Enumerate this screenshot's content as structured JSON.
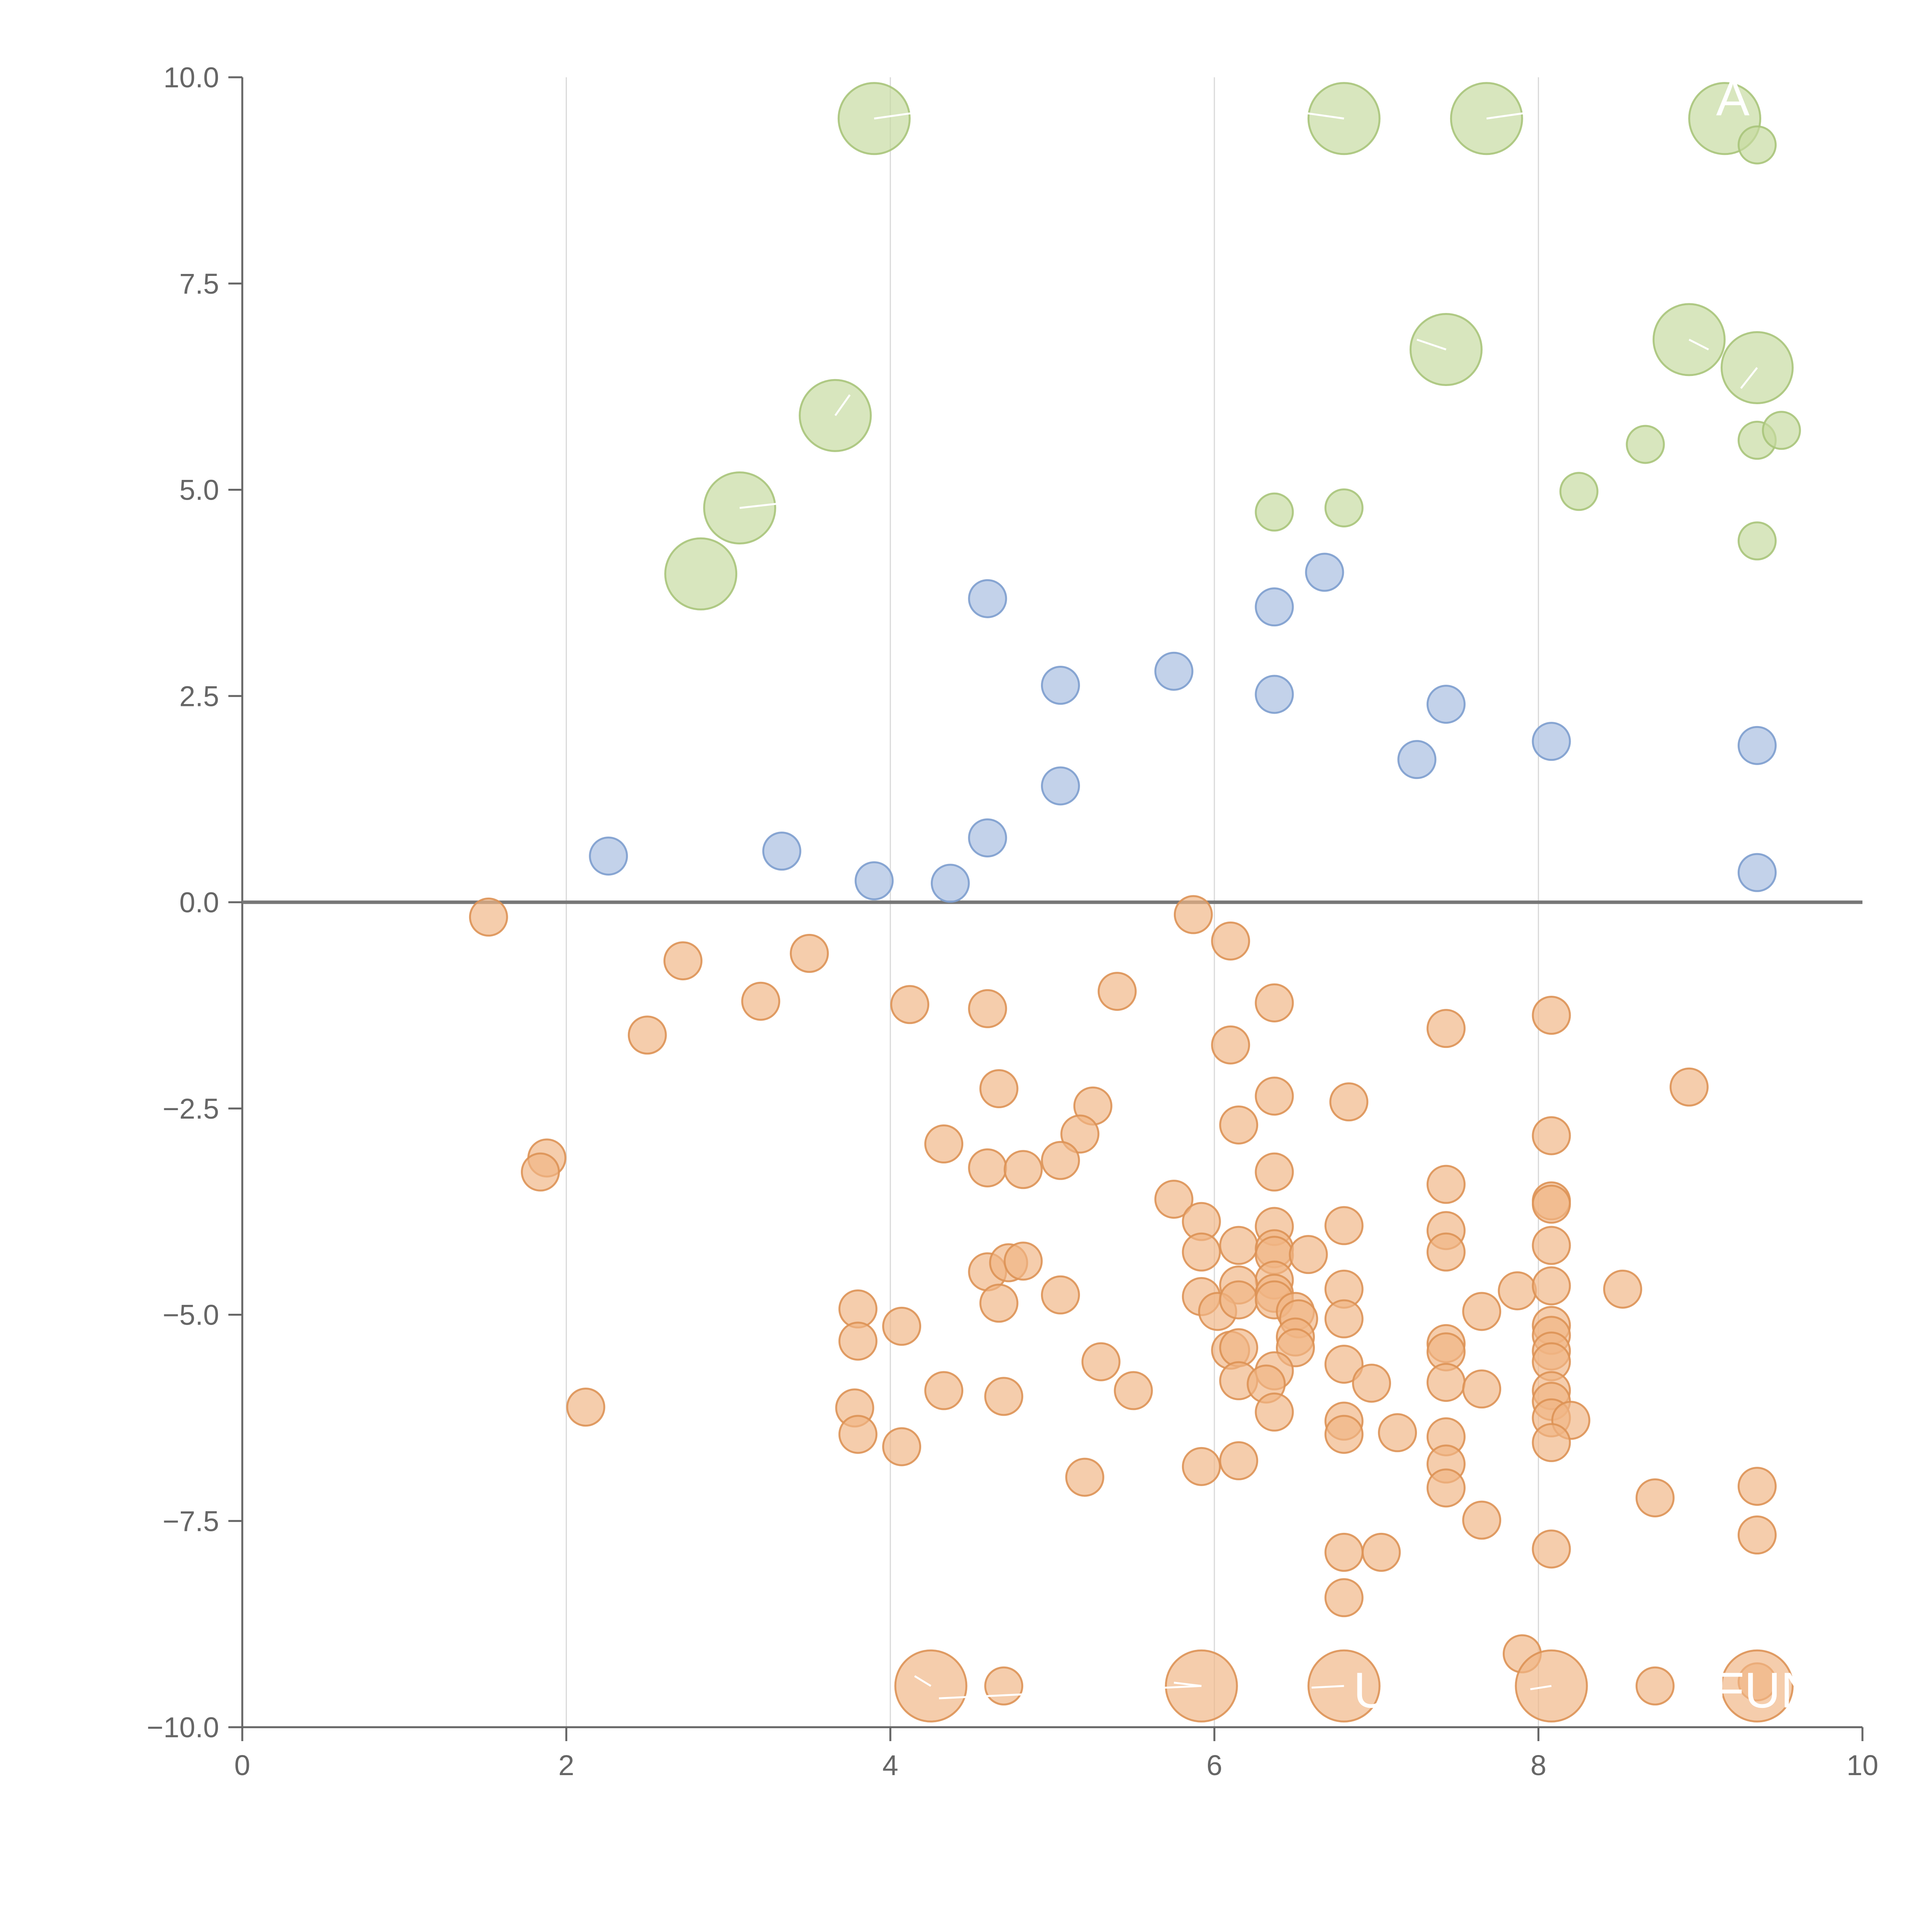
{
  "chart_data": {
    "type": "scatter",
    "title": "",
    "xlabel": "",
    "ylabel": "",
    "xlim": [
      0,
      10
    ],
    "ylim": [
      -10,
      10
    ],
    "x_ticks": [
      "0",
      "2",
      "4",
      "6",
      "8",
      "10"
    ],
    "y_ticks": [
      "−10.0",
      "−7.5",
      "−5.0",
      "−2.5",
      "0.0",
      "2.5",
      "5.0",
      "7.5",
      "10.0"
    ],
    "x_tick_values": [
      0,
      2,
      4,
      6,
      8,
      10
    ],
    "y_tick_values": [
      -10,
      -7.5,
      -5,
      -2.5,
      0,
      2.5,
      5,
      7.5,
      10
    ],
    "vertical_grid_at": [
      2,
      4,
      6,
      8
    ],
    "reference_line_y": 0,
    "legend": "none",
    "colors": {
      "green_fill": "#c5da9f",
      "green_stroke": "#a9c47a",
      "blue_fill": "#a6bde0",
      "blue_stroke": "#7d9dce",
      "orange_fill": "#f0b585",
      "orange_stroke": "#dd9255"
    },
    "series": [
      {
        "color": "green",
        "points": [
          {
            "x": 3.9,
            "y": 9.5,
            "size": 2
          },
          {
            "x": 6.8,
            "y": 9.5,
            "size": 2
          },
          {
            "x": 7.68,
            "y": 9.5,
            "size": 2
          },
          {
            "x": 9.15,
            "y": 9.5,
            "size": 2
          },
          {
            "x": 9.35,
            "y": 9.18,
            "size": 1
          },
          {
            "x": 7.43,
            "y": 6.7,
            "size": 2
          },
          {
            "x": 8.93,
            "y": 6.82,
            "size": 2
          },
          {
            "x": 9.35,
            "y": 6.48,
            "size": 2
          },
          {
            "x": 3.66,
            "y": 5.9,
            "size": 2
          },
          {
            "x": 3.07,
            "y": 4.78,
            "size": 2
          },
          {
            "x": 2.83,
            "y": 3.98,
            "size": 2
          },
          {
            "x": 8.66,
            "y": 5.55,
            "size": 1
          },
          {
            "x": 9.35,
            "y": 5.6,
            "size": 1
          },
          {
            "x": 9.5,
            "y": 5.72,
            "size": 1
          },
          {
            "x": 8.25,
            "y": 4.98,
            "size": 1
          },
          {
            "x": 6.37,
            "y": 4.73,
            "size": 1
          },
          {
            "x": 6.8,
            "y": 4.78,
            "size": 1
          },
          {
            "x": 9.35,
            "y": 4.38,
            "size": 1
          }
        ]
      },
      {
        "color": "blue",
        "points": [
          {
            "x": 4.6,
            "y": 3.68
          },
          {
            "x": 6.68,
            "y": 4.0
          },
          {
            "x": 6.37,
            "y": 3.58
          },
          {
            "x": 5.05,
            "y": 2.63
          },
          {
            "x": 5.75,
            "y": 2.8
          },
          {
            "x": 6.37,
            "y": 2.52
          },
          {
            "x": 7.43,
            "y": 2.4
          },
          {
            "x": 8.08,
            "y": 1.95
          },
          {
            "x": 7.25,
            "y": 1.73
          },
          {
            "x": 9.35,
            "y": 1.9
          },
          {
            "x": 5.05,
            "y": 1.41
          },
          {
            "x": 4.6,
            "y": 0.78
          },
          {
            "x": 2.26,
            "y": 0.56
          },
          {
            "x": 3.33,
            "y": 0.62
          },
          {
            "x": 3.9,
            "y": 0.26
          },
          {
            "x": 4.37,
            "y": 0.23
          },
          {
            "x": 9.35,
            "y": 0.36
          }
        ]
      },
      {
        "color": "orange",
        "points": [
          {
            "x": 1.52,
            "y": -0.18
          },
          {
            "x": 5.87,
            "y": -0.15
          },
          {
            "x": 6.1,
            "y": -0.47
          },
          {
            "x": 2.72,
            "y": -0.71
          },
          {
            "x": 3.5,
            "y": -0.62
          },
          {
            "x": 3.2,
            "y": -1.2
          },
          {
            "x": 2.5,
            "y": -1.61
          },
          {
            "x": 4.12,
            "y": -1.24
          },
          {
            "x": 4.6,
            "y": -1.29
          },
          {
            "x": 5.4,
            "y": -1.08
          },
          {
            "x": 6.37,
            "y": -1.22
          },
          {
            "x": 6.1,
            "y": -1.73
          },
          {
            "x": 7.43,
            "y": -1.53
          },
          {
            "x": 8.08,
            "y": -1.37
          },
          {
            "x": 4.67,
            "y": -2.26
          },
          {
            "x": 5.25,
            "y": -2.47
          },
          {
            "x": 6.37,
            "y": -2.35
          },
          {
            "x": 6.83,
            "y": -2.42
          },
          {
            "x": 8.93,
            "y": -2.24
          },
          {
            "x": 1.88,
            "y": -3.1
          },
          {
            "x": 1.84,
            "y": -3.27
          },
          {
            "x": 4.33,
            "y": -2.93
          },
          {
            "x": 5.17,
            "y": -2.81
          },
          {
            "x": 6.15,
            "y": -2.7
          },
          {
            "x": 8.08,
            "y": -2.83
          },
          {
            "x": 4.6,
            "y": -3.22
          },
          {
            "x": 4.82,
            "y": -3.24
          },
          {
            "x": 5.05,
            "y": -3.13
          },
          {
            "x": 6.37,
            "y": -3.27
          },
          {
            "x": 7.43,
            "y": -3.42
          },
          {
            "x": 5.75,
            "y": -3.6
          },
          {
            "x": 5.92,
            "y": -3.87
          },
          {
            "x": 8.08,
            "y": -3.62
          },
          {
            "x": 8.08,
            "y": -3.66
          },
          {
            "x": 6.37,
            "y": -3.93
          },
          {
            "x": 6.8,
            "y": -3.92
          },
          {
            "x": 7.43,
            "y": -3.98
          },
          {
            "x": 5.92,
            "y": -4.24
          },
          {
            "x": 6.15,
            "y": -4.16
          },
          {
            "x": 6.37,
            "y": -4.2
          },
          {
            "x": 6.37,
            "y": -4.28
          },
          {
            "x": 6.58,
            "y": -4.27
          },
          {
            "x": 7.43,
            "y": -4.24
          },
          {
            "x": 8.08,
            "y": -4.16
          },
          {
            "x": 4.6,
            "y": -4.48
          },
          {
            "x": 4.73,
            "y": -4.37
          },
          {
            "x": 4.82,
            "y": -4.35
          },
          {
            "x": 6.37,
            "y": -4.58
          },
          {
            "x": 6.15,
            "y": -4.64
          },
          {
            "x": 5.92,
            "y": -4.78
          },
          {
            "x": 6.02,
            "y": -4.96
          },
          {
            "x": 6.15,
            "y": -4.82
          },
          {
            "x": 6.37,
            "y": -4.74
          },
          {
            "x": 6.37,
            "y": -4.82
          },
          {
            "x": 6.8,
            "y": -4.69
          },
          {
            "x": 7.87,
            "y": -4.71
          },
          {
            "x": 8.08,
            "y": -4.65
          },
          {
            "x": 8.52,
            "y": -4.69
          },
          {
            "x": 3.8,
            "y": -4.93
          },
          {
            "x": 4.67,
            "y": -4.86
          },
          {
            "x": 5.05,
            "y": -4.76
          },
          {
            "x": 6.5,
            "y": -4.96
          },
          {
            "x": 6.52,
            "y": -5.05
          },
          {
            "x": 6.8,
            "y": -5.05
          },
          {
            "x": 7.65,
            "y": -4.96
          },
          {
            "x": 4.07,
            "y": -5.14
          },
          {
            "x": 8.08,
            "y": -5.13
          },
          {
            "x": 3.8,
            "y": -5.32
          },
          {
            "x": 6.5,
            "y": -5.27
          },
          {
            "x": 8.08,
            "y": -5.25
          },
          {
            "x": 7.43,
            "y": -5.35
          },
          {
            "x": 6.1,
            "y": -5.43
          },
          {
            "x": 6.15,
            "y": -5.4
          },
          {
            "x": 6.5,
            "y": -5.4
          },
          {
            "x": 7.43,
            "y": -5.45
          },
          {
            "x": 8.08,
            "y": -5.44
          },
          {
            "x": 5.3,
            "y": -5.57
          },
          {
            "x": 6.8,
            "y": -5.6
          },
          {
            "x": 8.08,
            "y": -5.57
          },
          {
            "x": 6.37,
            "y": -5.68
          },
          {
            "x": 6.15,
            "y": -5.8
          },
          {
            "x": 6.32,
            "y": -5.84
          },
          {
            "x": 6.97,
            "y": -5.83
          },
          {
            "x": 7.43,
            "y": -5.82
          },
          {
            "x": 4.33,
            "y": -5.92
          },
          {
            "x": 5.5,
            "y": -5.92
          },
          {
            "x": 4.7,
            "y": -5.99
          },
          {
            "x": 7.65,
            "y": -5.9
          },
          {
            "x": 8.08,
            "y": -5.92
          },
          {
            "x": 2.12,
            "y": -6.12
          },
          {
            "x": 3.78,
            "y": -6.13
          },
          {
            "x": 8.08,
            "y": -6.05
          },
          {
            "x": 6.37,
            "y": -6.18
          },
          {
            "x": 6.8,
            "y": -6.29
          },
          {
            "x": 8.08,
            "y": -6.25
          },
          {
            "x": 8.2,
            "y": -6.28
          },
          {
            "x": 3.8,
            "y": -6.45
          },
          {
            "x": 6.8,
            "y": -6.45
          },
          {
            "x": 7.13,
            "y": -6.43
          },
          {
            "x": 7.43,
            "y": -6.48
          },
          {
            "x": 4.07,
            "y": -6.6
          },
          {
            "x": 8.08,
            "y": -6.55
          },
          {
            "x": 5.92,
            "y": -6.84
          },
          {
            "x": 6.15,
            "y": -6.77
          },
          {
            "x": 7.43,
            "y": -6.81
          },
          {
            "x": 5.2,
            "y": -6.97
          },
          {
            "x": 7.43,
            "y": -7.1
          },
          {
            "x": 9.35,
            "y": -7.08
          },
          {
            "x": 8.72,
            "y": -7.22
          },
          {
            "x": 7.65,
            "y": -7.49
          },
          {
            "x": 9.35,
            "y": -7.67
          },
          {
            "x": 6.8,
            "y": -7.88
          },
          {
            "x": 7.03,
            "y": -7.88
          },
          {
            "x": 8.08,
            "y": -7.84
          },
          {
            "x": 6.8,
            "y": -8.43
          },
          {
            "x": 7.9,
            "y": -9.11
          },
          {
            "x": 4.7,
            "y": -9.5
          },
          {
            "x": 8.72,
            "y": -9.5
          },
          {
            "x": 9.35,
            "y": -9.45
          },
          {
            "x": 4.25,
            "y": -9.5,
            "size": 2
          },
          {
            "x": 5.92,
            "y": -9.5,
            "size": 2
          },
          {
            "x": 6.8,
            "y": -9.5,
            "size": 2
          },
          {
            "x": 8.08,
            "y": -9.5,
            "size": 2
          },
          {
            "x": 9.35,
            "y": -9.5,
            "size": 2
          }
        ]
      }
    ],
    "annotations": [
      {
        "text": "A",
        "x": 9.2,
        "y": 9.75
      },
      {
        "text": "U",
        "x": 6.97,
        "y": -9.55
      },
      {
        "text": "FUN",
        "x": 9.4,
        "y": -9.55
      }
    ],
    "leader_lines": [
      {
        "x1": 3.9,
        "y1": 9.5,
        "x2": 4.15,
        "y2": 9.57
      },
      {
        "x1": 6.8,
        "y1": 9.5,
        "x2": 6.55,
        "y2": 9.57
      },
      {
        "x1": 7.68,
        "y1": 9.5,
        "x2": 7.93,
        "y2": 9.57
      },
      {
        "x1": 7.43,
        "y1": 6.7,
        "x2": 7.25,
        "y2": 6.82
      },
      {
        "x1": 8.93,
        "y1": 6.82,
        "x2": 9.05,
        "y2": 6.7
      },
      {
        "x1": 9.35,
        "y1": 6.48,
        "x2": 9.25,
        "y2": 6.23
      },
      {
        "x1": 3.66,
        "y1": 5.9,
        "x2": 3.75,
        "y2": 6.15
      },
      {
        "x1": 3.07,
        "y1": 4.78,
        "x2": 3.3,
        "y2": 4.83
      },
      {
        "x1": 4.25,
        "y1": -9.5,
        "x2": 4.15,
        "y2": -9.38
      },
      {
        "x1": 5.92,
        "y1": -9.5,
        "x2": 4.3,
        "y2": -9.65
      },
      {
        "x1": 5.92,
        "y1": -9.5,
        "x2": 5.75,
        "y2": -9.46
      },
      {
        "x1": 6.8,
        "y1": -9.5,
        "x2": 6.6,
        "y2": -9.52
      },
      {
        "x1": 8.08,
        "y1": -9.5,
        "x2": 7.95,
        "y2": -9.54
      }
    ]
  }
}
